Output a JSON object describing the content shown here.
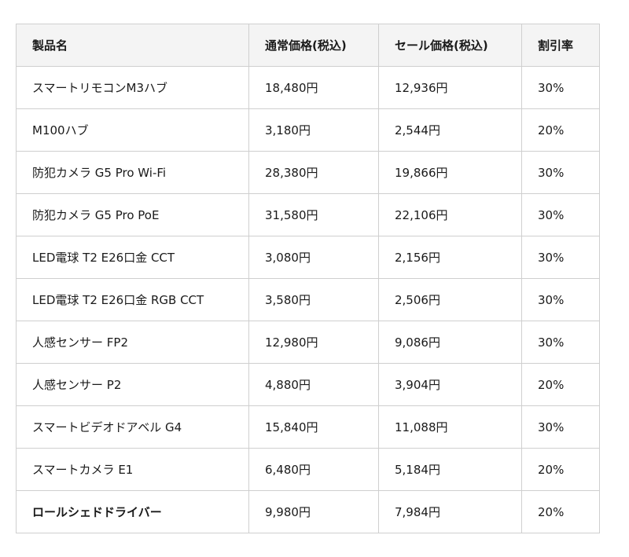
{
  "table": {
    "headers": [
      "製品名",
      "通常価格(税込)",
      "セール価格(税込)",
      "割引率"
    ],
    "rows": [
      [
        "スマートリモコンM3ハブ",
        "18,480円",
        "12,936円",
        "30%"
      ],
      [
        "M100ハブ",
        "3,180円",
        "2,544円",
        "20%"
      ],
      [
        "防犯カメラ G5 Pro Wi-Fi",
        "28,380円",
        "19,866円",
        "30%"
      ],
      [
        "防犯カメラ G5 Pro PoE",
        "31,580円",
        "22,106円",
        "30%"
      ],
      [
        "LED電球 T2 E26口金 CCT",
        "3,080円",
        "2,156円",
        "30%"
      ],
      [
        "LED電球 T2 E26口金 RGB CCT",
        "3,580円",
        "2,506円",
        "30%"
      ],
      [
        "人感センサー FP2",
        "12,980円",
        "9,086円",
        "30%"
      ],
      [
        "人感センサー P2",
        "4,880円",
        "3,904円",
        "20%"
      ],
      [
        "スマートビデオドアベル G4",
        "15,840円",
        "11,088円",
        "30%"
      ],
      [
        "スマートカメラ E1",
        "6,480円",
        "5,184円",
        "20%"
      ],
      [
        "ロールシェドドライバー",
        "9,980円",
        "7,984円",
        "20%"
      ]
    ]
  }
}
